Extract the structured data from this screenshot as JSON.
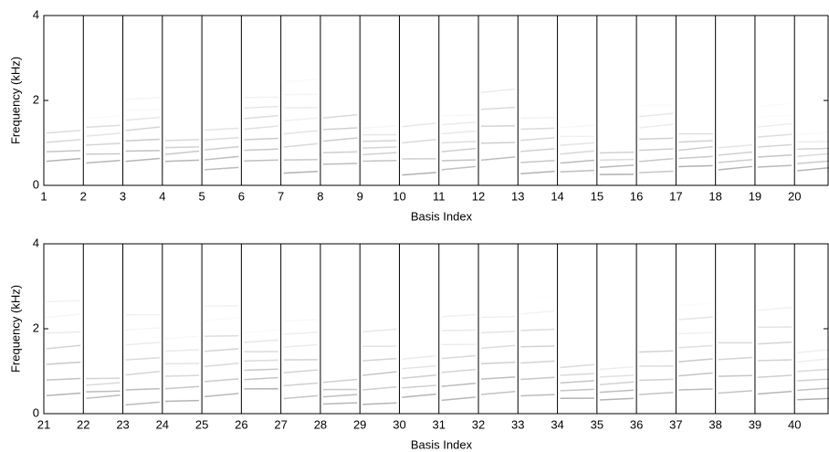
{
  "chart_data": [
    {
      "type": "spectrogram-basis",
      "xlabel": "Basis Index",
      "ylabel": "Frequency (kHz)",
      "xlim": [
        1,
        20.85
      ],
      "xticks": [
        1,
        2,
        3,
        4,
        5,
        6,
        7,
        8,
        9,
        10,
        11,
        12,
        13,
        14,
        15,
        16,
        17,
        18,
        19,
        20
      ],
      "ylim": [
        0,
        4
      ],
      "yticks": [
        0,
        2,
        4
      ]
    },
    {
      "type": "spectrogram-basis",
      "xlabel": "Basis Index",
      "ylabel": "Frequency (kHz)",
      "xlim": [
        21,
        40.85
      ],
      "xticks": [
        21,
        22,
        23,
        24,
        25,
        26,
        27,
        28,
        29,
        30,
        31,
        32,
        33,
        34,
        35,
        36,
        37,
        38,
        39,
        40
      ],
      "ylim": [
        0,
        4
      ],
      "yticks": [
        0,
        2,
        4
      ]
    }
  ]
}
